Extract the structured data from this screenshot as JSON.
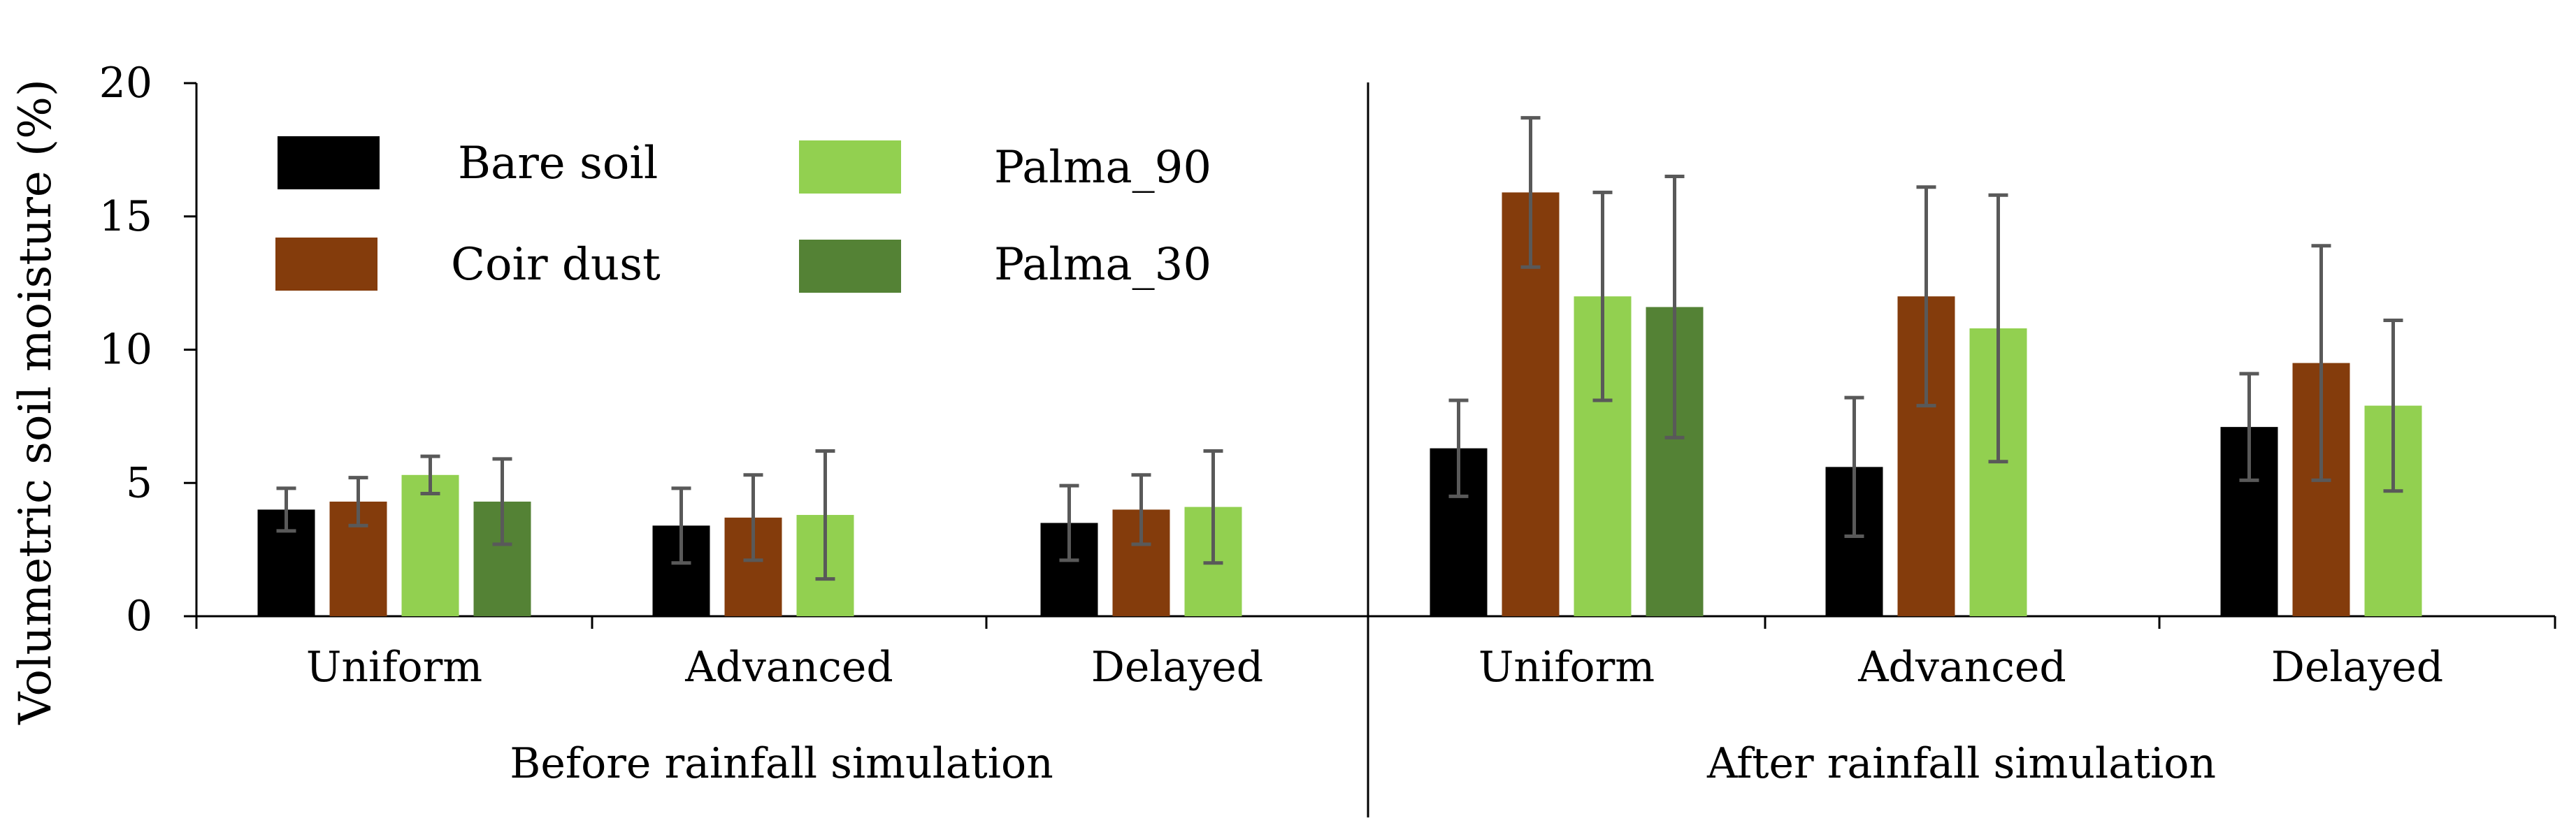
{
  "chart_data": {
    "type": "bar",
    "title": "",
    "ylabel": "Volumetric soil moisture (%)",
    "xlabel": "",
    "ylim": [
      0,
      20
    ],
    "yticks": [
      0,
      5,
      10,
      15,
      20
    ],
    "grid": false,
    "legend_position": "top-left",
    "groups": [
      {
        "label": "Before rainfall simulation",
        "categories": [
          "Uniform",
          "Advanced",
          "Delayed"
        ]
      },
      {
        "label": "After rainfall simulation",
        "categories": [
          "Uniform",
          "Advanced",
          "Delayed"
        ]
      }
    ],
    "series": [
      {
        "name": "Bare soil",
        "color": "#000000",
        "values": [
          4.0,
          3.4,
          3.5,
          6.3,
          5.6,
          7.1
        ],
        "errors": [
          0.8,
          1.4,
          1.4,
          1.8,
          2.6,
          2.0
        ]
      },
      {
        "name": "Coir dust",
        "color": "#843c0c",
        "values": [
          4.3,
          3.7,
          4.0,
          15.9,
          12.0,
          9.5
        ],
        "errors": [
          0.9,
          1.6,
          1.3,
          2.8,
          4.1,
          4.4
        ]
      },
      {
        "name": "Palma_90",
        "color": "#92d050",
        "values": [
          5.3,
          3.8,
          4.1,
          12.0,
          10.8,
          7.9
        ],
        "errors": [
          0.7,
          2.4,
          2.1,
          3.9,
          5.0,
          3.2
        ]
      },
      {
        "name": "Palma_30",
        "color": "#548235",
        "values": [
          4.3,
          null,
          null,
          11.6,
          null,
          null
        ],
        "errors": [
          1.6,
          null,
          null,
          4.9,
          null,
          null
        ]
      }
    ]
  }
}
